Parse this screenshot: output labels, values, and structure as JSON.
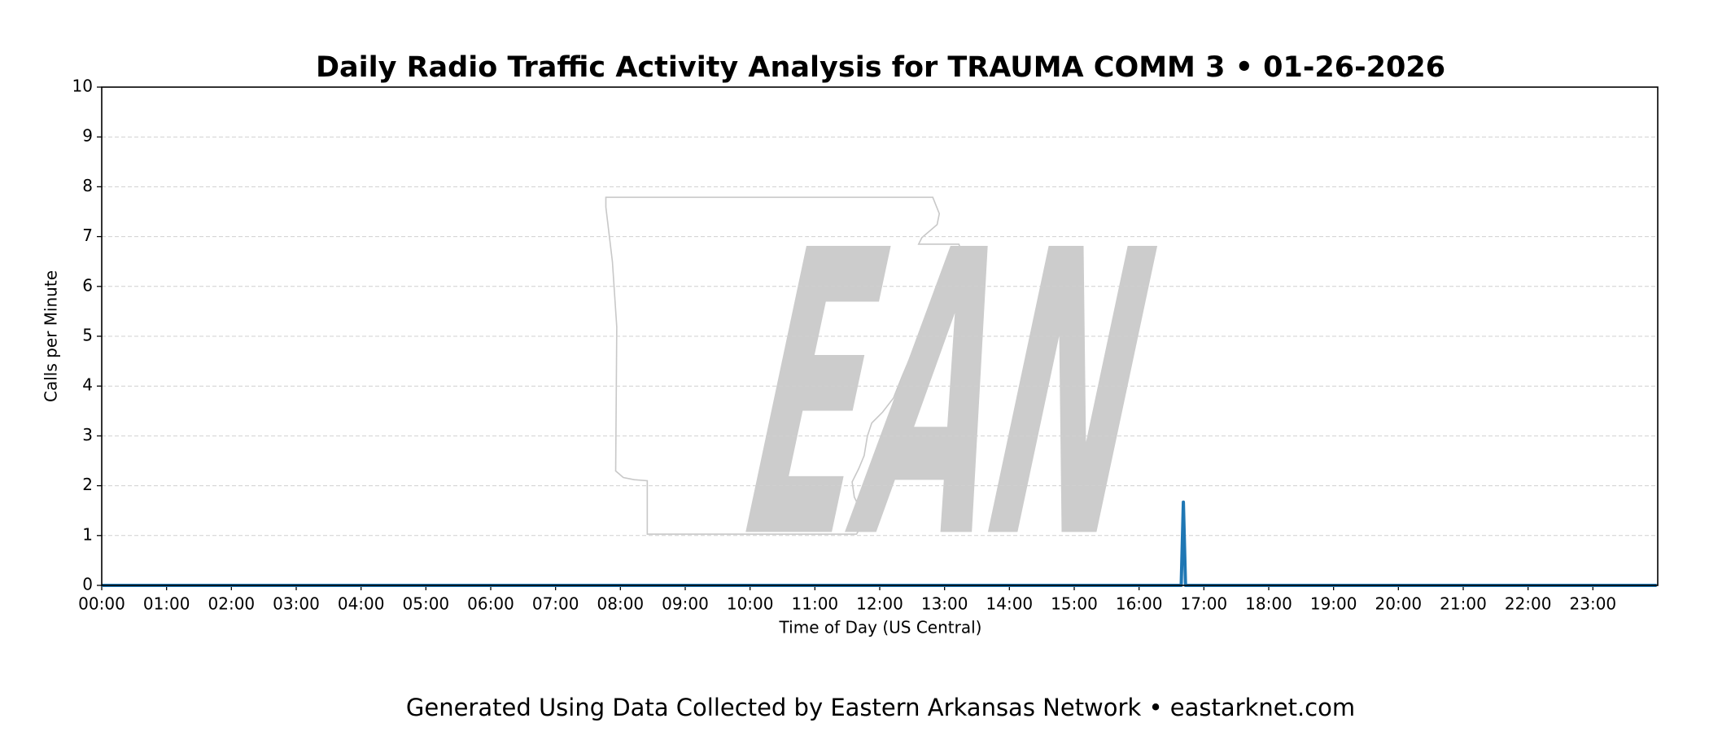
{
  "chart_data": {
    "type": "line",
    "title": "Daily Radio Traffic Activity Analysis for TRAUMA COMM 3 • 01-26-2026",
    "xlabel": "Time of Day (US Central)",
    "ylabel": "Calls per Minute",
    "footer": "Generated Using Data Collected by Eastern Arkansas Network • eastarknet.com",
    "watermark": "EAN",
    "x": [
      0,
      16.65,
      16.6833,
      16.7167,
      23.9833
    ],
    "series": [
      {
        "color": "#1f77b4",
        "values": [
          0,
          0,
          1.67,
          0,
          0
        ]
      }
    ],
    "xlim": [
      0,
      24
    ],
    "xticks": [
      {
        "value": 0,
        "label": "00:00"
      },
      {
        "value": 1,
        "label": "01:00"
      },
      {
        "value": 2,
        "label": "02:00"
      },
      {
        "value": 3,
        "label": "03:00"
      },
      {
        "value": 4,
        "label": "04:00"
      },
      {
        "value": 5,
        "label": "05:00"
      },
      {
        "value": 6,
        "label": "06:00"
      },
      {
        "value": 7,
        "label": "07:00"
      },
      {
        "value": 8,
        "label": "08:00"
      },
      {
        "value": 9,
        "label": "09:00"
      },
      {
        "value": 10,
        "label": "10:00"
      },
      {
        "value": 11,
        "label": "11:00"
      },
      {
        "value": 12,
        "label": "12:00"
      },
      {
        "value": 13,
        "label": "13:00"
      },
      {
        "value": 14,
        "label": "14:00"
      },
      {
        "value": 15,
        "label": "15:00"
      },
      {
        "value": 16,
        "label": "16:00"
      },
      {
        "value": 17,
        "label": "17:00"
      },
      {
        "value": 18,
        "label": "18:00"
      },
      {
        "value": 19,
        "label": "19:00"
      },
      {
        "value": 20,
        "label": "20:00"
      },
      {
        "value": 21,
        "label": "21:00"
      },
      {
        "value": 22,
        "label": "22:00"
      },
      {
        "value": 23,
        "label": "23:00"
      }
    ],
    "ylim": [
      0,
      10
    ],
    "yticks": [
      0,
      1,
      2,
      3,
      4,
      5,
      6,
      7,
      8,
      9,
      10
    ],
    "grid": "y"
  }
}
